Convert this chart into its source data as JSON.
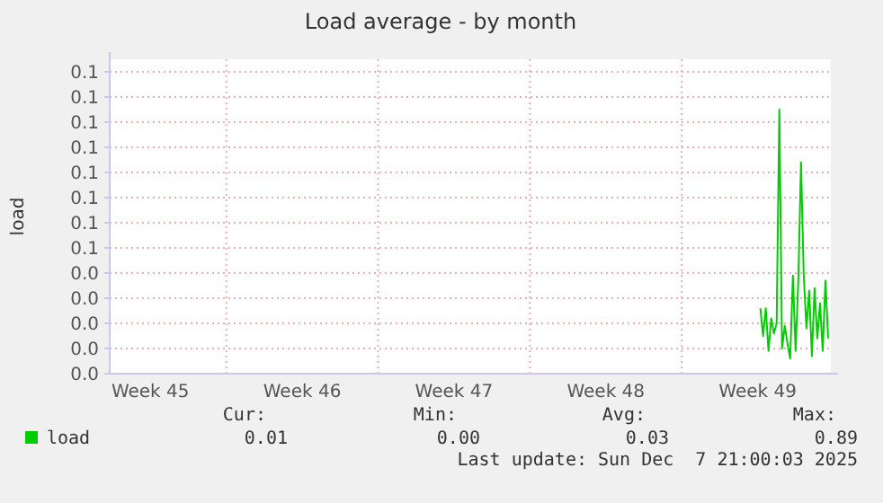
{
  "chart_data": {
    "type": "line",
    "title": "Load average - by month",
    "ylabel": "load",
    "categories": [
      null,
      null,
      null,
      null,
      null,
      null,
      null,
      null,
      null,
      null,
      null,
      null,
      null,
      null,
      null,
      "Week 45",
      null,
      null,
      null,
      null,
      null,
      null,
      null,
      null,
      null,
      null,
      null,
      null,
      null,
      null,
      null,
      null,
      null,
      null,
      null,
      null,
      null,
      null,
      null,
      null,
      null,
      null,
      null,
      null,
      null,
      null,
      null,
      null,
      null,
      null,
      null,
      null,
      null,
      null,
      null,
      null,
      null,
      null,
      null,
      null,
      null,
      null,
      null,
      null,
      null,
      null,
      null,
      null,
      null,
      null,
      null,
      "Week 46",
      null,
      null,
      null,
      null,
      null,
      null,
      null,
      null,
      null,
      null,
      null,
      null,
      null,
      null,
      null,
      null,
      null,
      null,
      null,
      null,
      null,
      null,
      null,
      null,
      null,
      null,
      null,
      null,
      null,
      null,
      null,
      null,
      null,
      null,
      null,
      null,
      null,
      null,
      null,
      null,
      null,
      null,
      null,
      null,
      null,
      null,
      null,
      null,
      null,
      null,
      null,
      null,
      null,
      null,
      null,
      "Week 47",
      null,
      null,
      null,
      null,
      null,
      null,
      null,
      null,
      null,
      null,
      null,
      null,
      null,
      null,
      null,
      null,
      null,
      null,
      null,
      null,
      null,
      null,
      null,
      null,
      null,
      null,
      null,
      null,
      null,
      null,
      null,
      null,
      null,
      null,
      null,
      null,
      null,
      null,
      null,
      null,
      null,
      null,
      null,
      null,
      null,
      null,
      null,
      null,
      null,
      null,
      null,
      null,
      null,
      null,
      null,
      "Week 48",
      null,
      null,
      null,
      null,
      null,
      null,
      null,
      null,
      null,
      null,
      null,
      null,
      null,
      null,
      null,
      null,
      null,
      null,
      null,
      null,
      null,
      null,
      null,
      null,
      null,
      null,
      null,
      null,
      null,
      null,
      null,
      null,
      null,
      null,
      null,
      null,
      null,
      null,
      null,
      null,
      null,
      null,
      null,
      null,
      null,
      null,
      null,
      null,
      null,
      null,
      null,
      null,
      null,
      null,
      null,
      "Week 49",
      null,
      null,
      null,
      null,
      null,
      null,
      null,
      null,
      null,
      null,
      null,
      null,
      null,
      null,
      null,
      null,
      null,
      null,
      null,
      null,
      null,
      null,
      null,
      null,
      null,
      null,
      null
    ],
    "series": [
      {
        "name": "load",
        "color": "#00cc00",
        "values": [
          null,
          null,
          null,
          null,
          null,
          null,
          null,
          null,
          null,
          null,
          null,
          null,
          null,
          null,
          null,
          null,
          null,
          null,
          null,
          null,
          null,
          null,
          null,
          null,
          null,
          null,
          null,
          null,
          null,
          null,
          null,
          null,
          null,
          null,
          null,
          null,
          null,
          null,
          null,
          null,
          null,
          null,
          null,
          null,
          null,
          null,
          null,
          null,
          null,
          null,
          null,
          null,
          null,
          null,
          null,
          null,
          null,
          null,
          null,
          null,
          null,
          null,
          null,
          null,
          null,
          null,
          null,
          null,
          null,
          null,
          null,
          null,
          null,
          null,
          null,
          null,
          null,
          null,
          null,
          null,
          null,
          null,
          null,
          null,
          null,
          null,
          null,
          null,
          null,
          null,
          null,
          null,
          null,
          null,
          null,
          null,
          null,
          null,
          null,
          null,
          null,
          null,
          null,
          null,
          null,
          null,
          null,
          null,
          null,
          null,
          null,
          null,
          null,
          null,
          null,
          null,
          null,
          null,
          null,
          null,
          null,
          null,
          null,
          null,
          null,
          null,
          null,
          null,
          null,
          null,
          null,
          null,
          null,
          null,
          null,
          null,
          null,
          null,
          null,
          null,
          null,
          null,
          null,
          null,
          null,
          null,
          null,
          null,
          null,
          null,
          null,
          null,
          null,
          null,
          null,
          null,
          null,
          null,
          null,
          null,
          null,
          null,
          null,
          null,
          null,
          null,
          null,
          null,
          null,
          null,
          null,
          null,
          null,
          null,
          null,
          null,
          null,
          null,
          null,
          null,
          null,
          null,
          null,
          null,
          null,
          null,
          null,
          null,
          null,
          null,
          null,
          null,
          null,
          null,
          null,
          null,
          null,
          null,
          null,
          null,
          null,
          null,
          null,
          null,
          null,
          null,
          null,
          null,
          null,
          null,
          null,
          null,
          null,
          null,
          null,
          null,
          null,
          null,
          null,
          null,
          null,
          null,
          null,
          null,
          null,
          null,
          null,
          null,
          null,
          null,
          null,
          null,
          null,
          null,
          null,
          null,
          null,
          null,
          null,
          null,
          0.026,
          0.015,
          0.026,
          0.009,
          0.022,
          0.016,
          0.02,
          0.105,
          0.01,
          0.019,
          0.012,
          0.006,
          0.039,
          0.009,
          0.037,
          0.084,
          0.039,
          0.018,
          0.033,
          0.007,
          0.034,
          0.014,
          0.028,
          0.009,
          0.037,
          0.014,
          null
        ]
      }
    ],
    "ylim": [
      0,
      0.125
    ],
    "yticks": [
      {
        "value": 0,
        "label": "0.0"
      },
      {
        "value": 0.01,
        "label": "0.0"
      },
      {
        "value": 0.02,
        "label": "0.0"
      },
      {
        "value": 0.03,
        "label": "0.0"
      },
      {
        "value": 0.04,
        "label": "0.0"
      },
      {
        "value": 0.05,
        "label": "0.1"
      },
      {
        "value": 0.06,
        "label": "0.1"
      },
      {
        "value": 0.07,
        "label": "0.1"
      },
      {
        "value": 0.08,
        "label": "0.1"
      },
      {
        "value": 0.09,
        "label": "0.1"
      },
      {
        "value": 0.1,
        "label": "0.1"
      },
      {
        "value": 0.11,
        "label": "0.1"
      },
      {
        "value": 0.12,
        "label": "0.1"
      }
    ],
    "grid": true,
    "legend": "bottom",
    "marker": "none",
    "line_style": "solid",
    "annotations": [
      "Cur:",
      "Min:",
      "Avg:",
      "Max:",
      "0.01",
      "0.00",
      "0.03",
      "0.89",
      "Last update: Sun Dec  7 21:00:03 2025"
    ]
  }
}
